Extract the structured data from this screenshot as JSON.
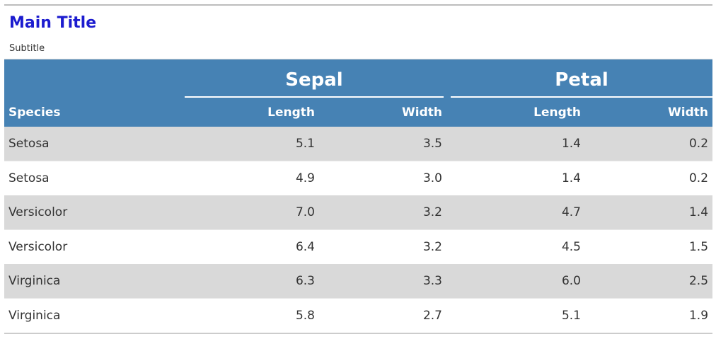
{
  "title": "Main Title",
  "subtitle": "Subtitle",
  "table": {
    "spanners": [
      "Sepal",
      "Petal"
    ],
    "columns": [
      "Species",
      "Length",
      "Width",
      "Length",
      "Width"
    ],
    "rows": [
      [
        "Setosa",
        "5.1",
        "3.5",
        "1.4",
        "0.2"
      ],
      [
        "Setosa",
        "4.9",
        "3.0",
        "1.4",
        "0.2"
      ],
      [
        "Versicolor",
        "7.0",
        "3.2",
        "4.7",
        "1.4"
      ],
      [
        "Versicolor",
        "6.4",
        "3.2",
        "4.5",
        "1.5"
      ],
      [
        "Virginica",
        "6.3",
        "3.3",
        "6.0",
        "2.5"
      ],
      [
        "Virginica",
        "5.8",
        "2.7",
        "5.1",
        "1.9"
      ]
    ]
  },
  "colors": {
    "title": "#1c1ccf",
    "header_bg": "#4682b4",
    "stripe_bg": "#d9d9d9"
  }
}
